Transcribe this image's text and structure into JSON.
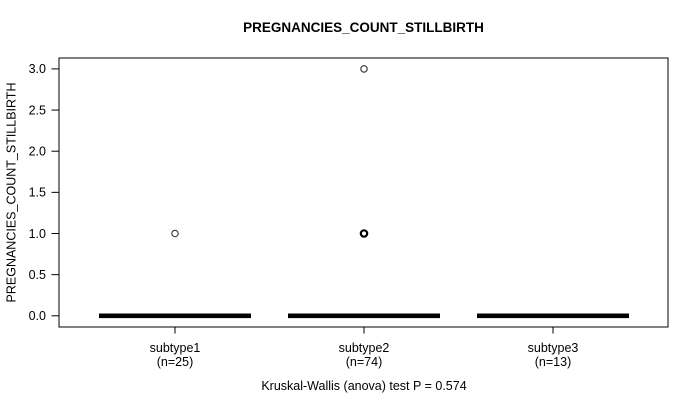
{
  "chart_data": {
    "type": "boxplot",
    "title": "PREGNANCIES_COUNT_STILLBIRTH",
    "ylabel": "PREGNANCIES_COUNT_STILLBIRTH",
    "footer": "Kruskal-Wallis (anova) test P = 0.574",
    "ylim": [
      0,
      3
    ],
    "yticks": [
      0,
      0.5,
      1,
      1.5,
      2,
      2.5,
      3
    ],
    "grid": false,
    "legend_position": "none",
    "groups": [
      {
        "label": "subtype1",
        "sublabel": "(n=25)",
        "n": 25,
        "median": 0,
        "q1": 0,
        "q3": 0,
        "whisker_low": 0,
        "whisker_high": 0,
        "outliers": [
          {
            "value": 1,
            "overplotted": false
          }
        ]
      },
      {
        "label": "subtype2",
        "sublabel": "(n=74)",
        "n": 74,
        "median": 0,
        "q1": 0,
        "q3": 0,
        "whisker_low": 0,
        "whisker_high": 0,
        "outliers": [
          {
            "value": 1,
            "overplotted": true
          },
          {
            "value": 3,
            "overplotted": false
          }
        ]
      },
      {
        "label": "subtype3",
        "sublabel": "(n=13)",
        "n": 13,
        "median": 0,
        "q1": 0,
        "q3": 0,
        "whisker_low": 0,
        "whisker_high": 0,
        "outliers": []
      }
    ],
    "colors": {
      "line": "#000000",
      "background": "#ffffff",
      "outlier_stroke": "#3d3d3d"
    }
  }
}
